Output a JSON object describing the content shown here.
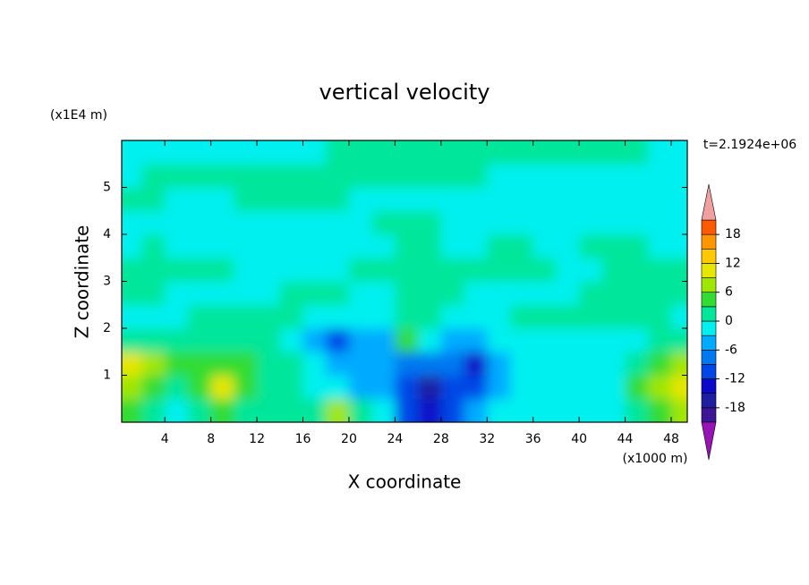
{
  "chart_data": {
    "type": "contour",
    "title": "vertical velocity",
    "x_label": "X coordinate",
    "y_label": "Z coordinate",
    "x_unit": "(x1000 m)",
    "y_unit": "(x1E4 m)",
    "annotation": "t=2.1924e+06",
    "xlim": [
      0.25,
      49.4
    ],
    "ylim": [
      0,
      6
    ],
    "xticks": [
      4,
      8,
      12,
      16,
      20,
      24,
      28,
      32,
      36,
      40,
      44,
      48
    ],
    "yticks": [
      1,
      2,
      3,
      4,
      5
    ],
    "x": [
      1,
      3,
      5,
      7,
      9,
      11,
      13,
      15,
      17,
      19,
      21,
      23,
      25,
      27,
      29,
      31,
      33,
      35,
      37,
      39,
      41,
      43,
      45,
      47,
      49
    ],
    "z": [
      0.25,
      0.75,
      1.25,
      1.75,
      2.25,
      2.75,
      3.25,
      3.75,
      4.25,
      4.75,
      5.25,
      5.75
    ],
    "values": [
      [
        4,
        1,
        -1,
        1,
        4,
        1,
        1,
        1,
        1,
        7,
        1,
        -1,
        -10,
        -13,
        -10,
        -4,
        -1,
        -1,
        -1,
        -1,
        -1,
        -1,
        1,
        4,
        7
      ],
      [
        7,
        4,
        1,
        4,
        10,
        4,
        1,
        1,
        -1,
        -1,
        -4,
        -4,
        -10,
        -16,
        -10,
        -10,
        -4,
        -1,
        -1,
        -1,
        -1,
        -1,
        4,
        7,
        10
      ],
      [
        10,
        7,
        4,
        4,
        4,
        4,
        1,
        1,
        -1,
        -4,
        -4,
        -4,
        -7,
        -7,
        -7,
        -13,
        -4,
        -1,
        -1,
        -1,
        -1,
        -1,
        1,
        4,
        7
      ],
      [
        1,
        1,
        1,
        1,
        1,
        1,
        1,
        -1,
        -4,
        -10,
        -4,
        -4,
        4,
        -1,
        -4,
        -4,
        -1,
        -1,
        -1,
        -1,
        -1,
        -1,
        -1,
        1,
        1
      ],
      [
        -1,
        -1,
        -1,
        1,
        1,
        1,
        1,
        1,
        -1,
        -1,
        -1,
        -1,
        1,
        1,
        -1,
        -1,
        -1,
        1,
        1,
        1,
        1,
        1,
        1,
        1,
        -1
      ],
      [
        1,
        1,
        -1,
        -1,
        -1,
        -1,
        -1,
        1,
        1,
        1,
        -1,
        -1,
        1,
        1,
        1,
        -1,
        -1,
        -1,
        -1,
        -1,
        1,
        1,
        1,
        1,
        1
      ],
      [
        1,
        1,
        1,
        1,
        1,
        -1,
        -1,
        -1,
        -1,
        -1,
        1,
        1,
        1,
        1,
        1,
        1,
        1,
        1,
        1,
        -1,
        -1,
        1,
        1,
        1,
        1
      ],
      [
        -1,
        1,
        -1,
        -1,
        -1,
        -1,
        -1,
        -1,
        -1,
        -1,
        -1,
        -1,
        1,
        1,
        -1,
        -1,
        1,
        1,
        -1,
        -1,
        1,
        1,
        1,
        -1,
        -1
      ],
      [
        -1,
        -1,
        -1,
        -1,
        -1,
        -1,
        -1,
        -1,
        -1,
        -1,
        -1,
        1,
        1,
        1,
        -1,
        -1,
        -1,
        -1,
        -1,
        -1,
        -1,
        -1,
        -1,
        -1,
        -1
      ],
      [
        1,
        1,
        -1,
        -1,
        -1,
        1,
        1,
        1,
        1,
        1,
        -1,
        -1,
        -1,
        -1,
        -1,
        -1,
        -1,
        -1,
        -1,
        -1,
        -1,
        -1,
        -1,
        -1,
        -1
      ],
      [
        -1,
        1,
        1,
        1,
        1,
        1,
        1,
        1,
        1,
        1,
        1,
        1,
        1,
        1,
        1,
        1,
        -1,
        -1,
        -1,
        -1,
        -1,
        -1,
        -1,
        -1,
        -1
      ],
      [
        -1,
        -1,
        -1,
        -1,
        -1,
        -1,
        -1,
        -1,
        -1,
        1,
        1,
        1,
        1,
        1,
        1,
        1,
        1,
        1,
        1,
        1,
        1,
        1,
        1,
        -1,
        -1
      ]
    ],
    "colorbar": {
      "levels": [
        -21,
        -18,
        -15,
        -12,
        -9,
        -6,
        -3,
        0,
        3,
        6,
        9,
        12,
        15,
        18,
        21
      ],
      "colors": [
        "#3c1496",
        "#1e1ea0",
        "#0a0ac8",
        "#0046e6",
        "#0078f0",
        "#00aaff",
        "#00f0f0",
        "#00e69a",
        "#32dc32",
        "#a0e600",
        "#e6e600",
        "#ffc800",
        "#ff9600",
        "#ff5a00"
      ],
      "under_color": "#9614b4",
      "over_color": "#f0a0a0",
      "ticks": [
        -18,
        -12,
        -6,
        0,
        6,
        12,
        18
      ]
    }
  }
}
